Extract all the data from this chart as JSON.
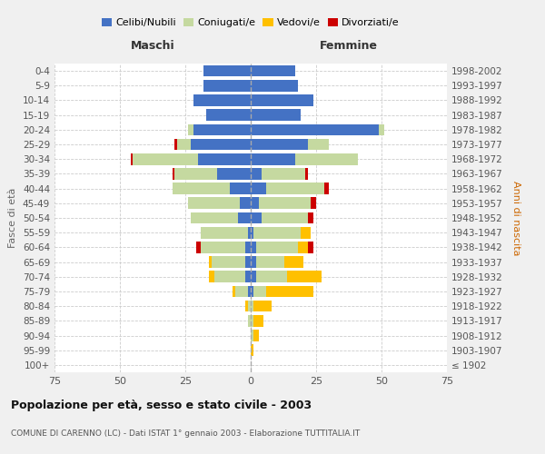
{
  "age_groups": [
    "100+",
    "95-99",
    "90-94",
    "85-89",
    "80-84",
    "75-79",
    "70-74",
    "65-69",
    "60-64",
    "55-59",
    "50-54",
    "45-49",
    "40-44",
    "35-39",
    "30-34",
    "25-29",
    "20-24",
    "15-19",
    "10-14",
    "5-9",
    "0-4"
  ],
  "birth_years": [
    "≤ 1902",
    "1903-1907",
    "1908-1912",
    "1913-1917",
    "1918-1922",
    "1923-1927",
    "1928-1932",
    "1933-1937",
    "1938-1942",
    "1943-1947",
    "1948-1952",
    "1953-1957",
    "1958-1962",
    "1963-1967",
    "1968-1972",
    "1973-1977",
    "1978-1982",
    "1983-1987",
    "1988-1992",
    "1993-1997",
    "1998-2002"
  ],
  "maschi": {
    "celibi": [
      0,
      0,
      0,
      0,
      0,
      1,
      2,
      2,
      2,
      1,
      5,
      4,
      8,
      13,
      20,
      23,
      22,
      17,
      22,
      18,
      18
    ],
    "coniugati": [
      0,
      0,
      0,
      1,
      1,
      5,
      12,
      13,
      17,
      18,
      18,
      20,
      22,
      16,
      25,
      5,
      2,
      0,
      0,
      0,
      0
    ],
    "vedovi": [
      0,
      0,
      0,
      0,
      1,
      1,
      2,
      1,
      0,
      0,
      0,
      0,
      0,
      0,
      0,
      0,
      0,
      0,
      0,
      0,
      0
    ],
    "divorziati": [
      0,
      0,
      0,
      0,
      0,
      0,
      0,
      0,
      2,
      0,
      0,
      0,
      0,
      1,
      1,
      1,
      0,
      0,
      0,
      0,
      0
    ]
  },
  "femmine": {
    "nubili": [
      0,
      0,
      0,
      0,
      0,
      1,
      2,
      2,
      2,
      1,
      4,
      3,
      6,
      4,
      17,
      22,
      49,
      19,
      24,
      18,
      17
    ],
    "coniugate": [
      0,
      0,
      1,
      1,
      1,
      5,
      12,
      11,
      16,
      18,
      18,
      20,
      22,
      17,
      24,
      8,
      2,
      0,
      0,
      0,
      0
    ],
    "vedove": [
      0,
      1,
      2,
      4,
      7,
      18,
      13,
      7,
      4,
      4,
      0,
      0,
      0,
      0,
      0,
      0,
      0,
      0,
      0,
      0,
      0
    ],
    "divorziate": [
      0,
      0,
      0,
      0,
      0,
      0,
      0,
      0,
      2,
      0,
      2,
      2,
      2,
      1,
      0,
      0,
      0,
      0,
      0,
      0,
      0
    ]
  },
  "colors": {
    "celibi": "#4472c4",
    "coniugati": "#c5d9a0",
    "vedovi": "#ffc000",
    "divorziati": "#cc0000"
  },
  "title": "Popolazione per età, sesso e stato civile - 2003",
  "subtitle": "COMUNE DI CARENNO (LC) - Dati ISTAT 1° gennaio 2003 - Elaborazione TUTTITALIA.IT",
  "label_maschi": "Maschi",
  "label_femmine": "Femmine",
  "ylabel_left": "Fasce di età",
  "ylabel_right": "Anni di nascita",
  "xlim": 75,
  "legend_labels": [
    "Celibi/Nubili",
    "Coniugati/e",
    "Vedovi/e",
    "Divorziati/e"
  ],
  "bg_color": "#f0f0f0",
  "plot_bg": "#ffffff"
}
